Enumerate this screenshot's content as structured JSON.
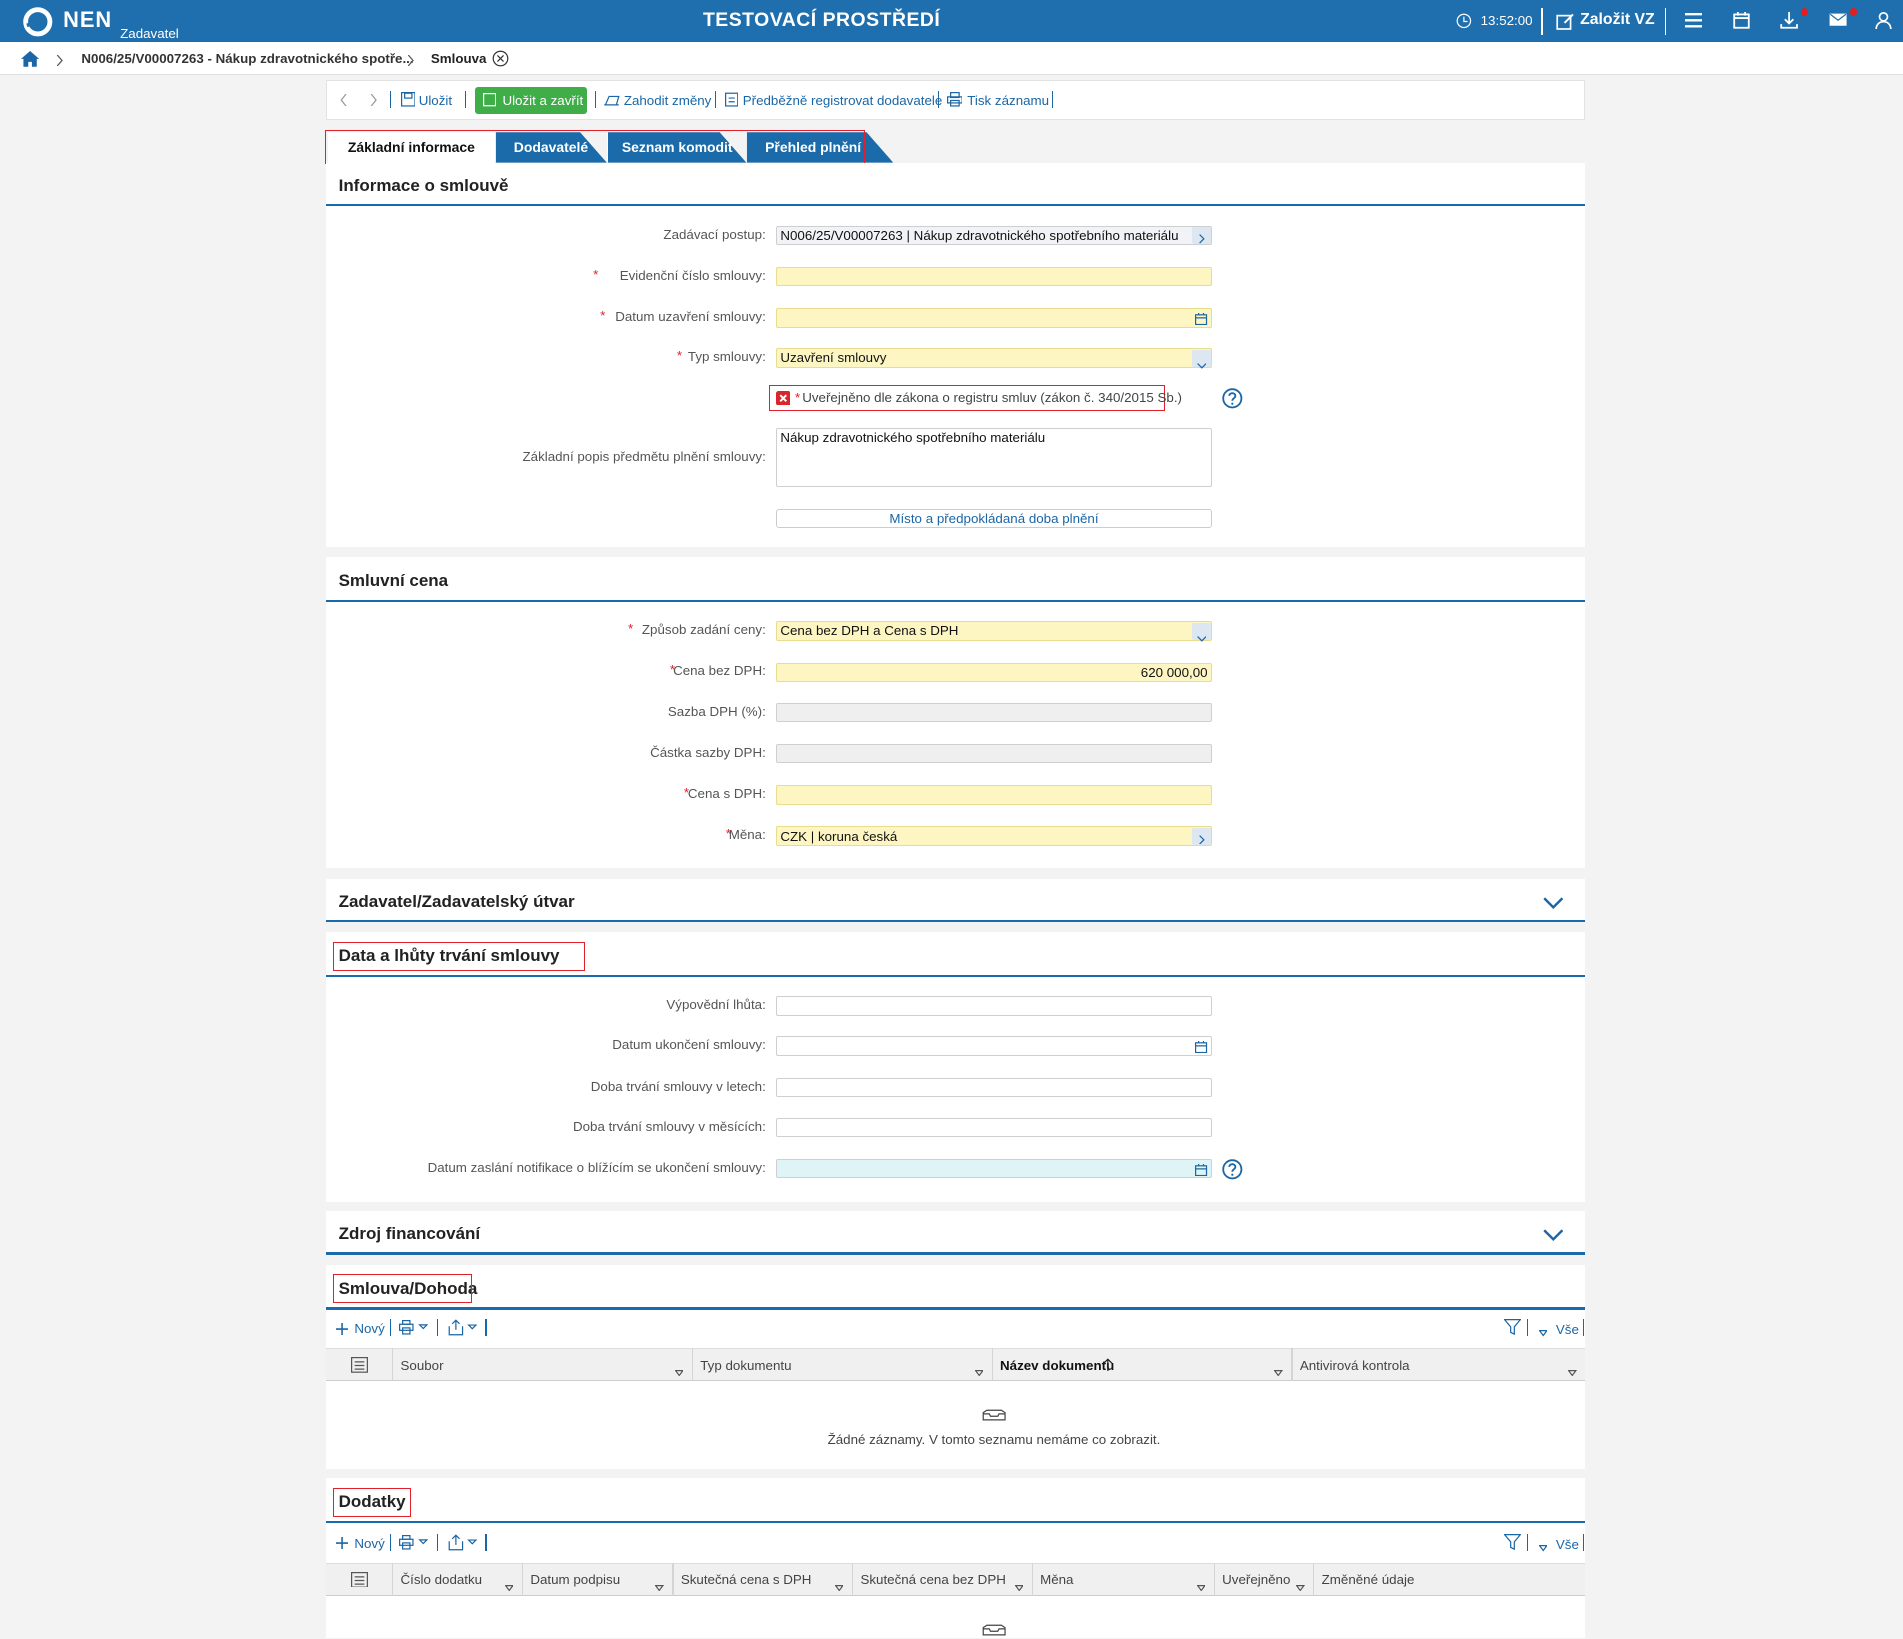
{
  "header": {
    "logo": "NEN",
    "role": "Zadavatel",
    "environment": "TESTOVACÍ PROSTŘEDÍ",
    "time": "13:52:00",
    "create_button": "Založit VZ"
  },
  "breadcrumb": [
    "N006/25/V00007263 - Nákup zdravotnického spotře...",
    "Smlouva"
  ],
  "toolbar": [
    "Uložit",
    "Uložit a zavřít",
    "Zahodit změny",
    "Předběžně registrovat dodavatele",
    "Tisk záznamu"
  ],
  "tabs": [
    "Základní informace",
    "Dodavatelé",
    "Seznam komodit",
    "Přehled plnění"
  ],
  "sections": [
    {
      "title": "Informace o smlouvě",
      "fields": [
        {
          "label": "Zadávací postup:",
          "kind": "link",
          "value": "N006/25/V00007263 | Nákup zdravotnického spotřebního materiálu"
        },
        {
          "marker": "*",
          "label": "Evidenční číslo smlouvy:",
          "kind": "required"
        },
        {
          "marker": "*",
          "label": "Datum uzavření smlouvy:",
          "kind": "required-date"
        },
        {
          "marker": "*",
          "label": "Typ smlouvy:",
          "kind": "required-select",
          "value": "Uzavření smlouvy"
        },
        {
          "marker": "*",
          "label": "Uveřejněno dle zákona o registru smluv (zákon č. 340/2015 Sb.)",
          "kind": "checkbox",
          "highlight": true,
          "help": true
        },
        {
          "label": "Základní popis předmětu plnění smlouvy:",
          "kind": "textarea",
          "value": "Nákup zdravotnického spotřebního materiálu"
        },
        {
          "label": "Místo a předpokládaná doba plnění",
          "kind": "button"
        }
      ]
    },
    {
      "title": "Smluvní cena",
      "fields": [
        {
          "marker": "*",
          "label": "Způsob zadání ceny:",
          "kind": "required-select",
          "value": "Cena bez DPH a Cena s DPH"
        },
        {
          "marker": "*",
          "label": "Cena bez DPH:",
          "kind": "required-number",
          "value": "620 000,00"
        },
        {
          "label": "Sazba DPH (%):",
          "kind": "readonly"
        },
        {
          "label": "Částka sazby DPH:",
          "kind": "readonly"
        },
        {
          "marker": "*",
          "label": "Cena s DPH:",
          "kind": "required"
        },
        {
          "marker": "*",
          "label": "Měna:",
          "kind": "required-link",
          "value": "CZK | koruna česká"
        }
      ]
    },
    {
      "title": "Zadavatel/Zadavatelský útvar",
      "collapsed": true
    },
    {
      "title": "Data a lhůty trvání smlouvy",
      "highlight": true,
      "fields": [
        {
          "label": "Výpovědní lhůta:",
          "kind": "empty"
        },
        {
          "label": "Datum ukončení smlouvy:",
          "kind": "date"
        },
        {
          "label": "Doba trvání smlouvy v letech:",
          "kind": "empty"
        },
        {
          "label": "Doba trvání smlouvy v měsících:",
          "kind": "empty"
        },
        {
          "label": "Datum zaslání notifikace o blížícím se ukončení smlouvy:",
          "kind": "cyan-date",
          "help": true
        }
      ]
    },
    {
      "title": "Zdroj financování",
      "collapsed": true
    },
    {
      "title": "Smlouva/Dohoda",
      "highlight": true,
      "table": {
        "new": "Nový",
        "all": "Vše",
        "columns": [
          "Soubor",
          "Typ dokumentu",
          "Název dokumentu",
          "Antivirová kontrola"
        ],
        "sorted": 2,
        "empty": "Žádné záznamy. V tomto seznamu nemáme co zobrazit."
      }
    },
    {
      "title": "Dodatky",
      "highlight": true,
      "table": {
        "new": "Nový",
        "all": "Vše",
        "columns": [
          "Číslo dodatku",
          "Datum podpisu",
          "Skutečná cena s DPH",
          "Skutečná cena bez DPH",
          "Měna",
          "Uveřejněno",
          "Změněné údaje"
        ]
      }
    }
  ]
}
